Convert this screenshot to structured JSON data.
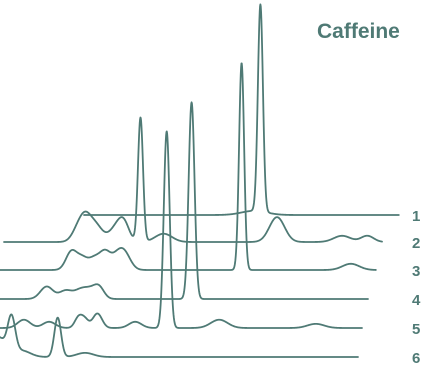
{
  "colors": {
    "trace": "#4f7a75",
    "text": "#4f7a75",
    "background": "#ffffff"
  },
  "chart_data": {
    "type": "line",
    "title": "Caffeine",
    "xlabel": "",
    "ylabel": "",
    "grid": false,
    "legend": "none",
    "x_range": [
      0,
      100
    ],
    "y_range": [
      0,
      100
    ],
    "series": [
      {
        "name": "1",
        "x_start": 20,
        "x_end": 95,
        "peaks": [
          {
            "x": 62.0,
            "h": 100,
            "w": 0.6
          },
          {
            "x": 60.5,
            "h": 2,
            "w": 3
          }
        ]
      },
      {
        "name": "2",
        "x_start": 5,
        "x_end": 95,
        "peaks": [
          {
            "x": 37.5,
            "h": 60,
            "w": 0.6
          },
          {
            "x": 23.0,
            "h": 8,
            "w": 1.5
          },
          {
            "x": 24.5,
            "h": 5,
            "w": 1.2
          },
          {
            "x": 26.5,
            "h": 9,
            "w": 1.8
          },
          {
            "x": 31.5,
            "h": 6,
            "w": 1.5
          },
          {
            "x": 33.5,
            "h": 9,
            "w": 1.3
          },
          {
            "x": 43.0,
            "h": 4,
            "w": 2
          },
          {
            "x": 70.0,
            "h": 12,
            "w": 1.8
          },
          {
            "x": 85.5,
            "h": 3,
            "w": 2
          },
          {
            "x": 91.5,
            "h": 3,
            "w": 1.5
          }
        ]
      },
      {
        "name": "3",
        "x_start": 4,
        "x_end": 95,
        "peaks": [
          {
            "x": 63.0,
            "h": 100,
            "w": 0.6
          },
          {
            "x": 22.5,
            "h": 9,
            "w": 1.3
          },
          {
            "x": 25.0,
            "h": 5,
            "w": 1.2
          },
          {
            "x": 28.0,
            "h": 6,
            "w": 1.5
          },
          {
            "x": 30.5,
            "h": 7,
            "w": 1.2
          },
          {
            "x": 33.0,
            "h": 5,
            "w": 1.5
          },
          {
            "x": 35.0,
            "h": 8,
            "w": 1.5
          },
          {
            "x": 89.0,
            "h": 3,
            "w": 2
          }
        ]
      },
      {
        "name": "4",
        "x_start": 1,
        "x_end": 95,
        "peaks": [
          {
            "x": 53.0,
            "h": 95,
            "w": 0.7
          },
          {
            "x": 18.5,
            "h": 6,
            "w": 1.5
          },
          {
            "x": 23.0,
            "h": 4,
            "w": 1.5
          },
          {
            "x": 26.5,
            "h": 4,
            "w": 1.5
          },
          {
            "x": 29.0,
            "h": 4,
            "w": 1.5
          },
          {
            "x": 31.0,
            "h": 5,
            "w": 1.2
          }
        ]
      },
      {
        "name": "5",
        "x_start": 1,
        "x_end": 95,
        "peaks": [
          {
            "x": 48.5,
            "h": 95,
            "w": 0.7
          },
          {
            "x": 14.5,
            "h": 4,
            "w": 1.5
          },
          {
            "x": 20.5,
            "h": 3,
            "w": 1.5
          },
          {
            "x": 27.5,
            "h": 5,
            "w": 0.9
          },
          {
            "x": 29.0,
            "h": 4,
            "w": 0.9
          },
          {
            "x": 32.0,
            "h": 7,
            "w": 1.1
          },
          {
            "x": 41.0,
            "h": 3,
            "w": 1.5
          },
          {
            "x": 61.0,
            "h": 4,
            "w": 2
          },
          {
            "x": 84.0,
            "h": 2,
            "w": 2
          }
        ]
      },
      {
        "name": "6",
        "x_start": 1,
        "x_end": 95,
        "peaks": [
          {
            "x": 23.5,
            "h": 19,
            "w": 0.8
          },
          {
            "x": 9.0,
            "h": 10,
            "w": 2.0
          },
          {
            "x": 12.5,
            "h": 17,
            "w": 0.9
          },
          {
            "x": 15.0,
            "h": 3,
            "w": 2.0
          },
          {
            "x": 30.0,
            "h": 2,
            "w": 2.0
          }
        ]
      }
    ]
  }
}
